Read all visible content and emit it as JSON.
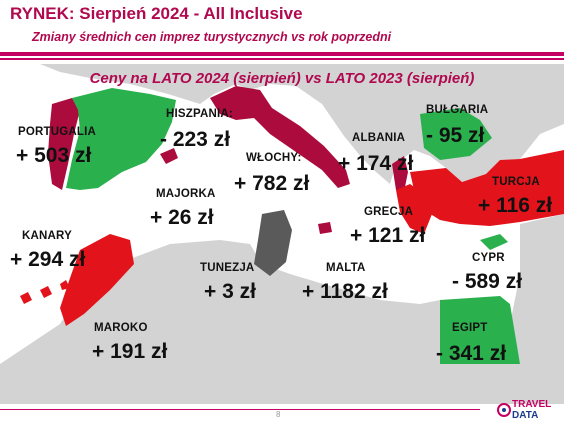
{
  "header": {
    "title": "RYNEK: Sierpień 2024 - All Inclusive",
    "subtitle": "Zmiany średnich cen imprez turystycznych vs rok poprzedni"
  },
  "chart_data": {
    "type": "table",
    "title": "Ceny na LATO 2024 (sierpień) vs  LATO 2023 (sierpień)",
    "colors": {
      "increase": "#ab0b3d",
      "decrease": "#2bb04e",
      "neutral": "#5a5a5a",
      "hot": "#e3131b"
    },
    "rows": [
      {
        "country": "PORTUGALIA",
        "value": "+ 503 zł"
      },
      {
        "country": "HISZPANIA:",
        "value": "- 223 zł"
      },
      {
        "country": "WŁOCHY:",
        "value": "+ 782 zł"
      },
      {
        "country": "ALBANIA",
        "value": "+ 174 zł"
      },
      {
        "country": "BUŁGARIA",
        "value": "- 95 zł"
      },
      {
        "country": "TURCJA",
        "value": "+ 116 zł"
      },
      {
        "country": "MAJORKA",
        "value": "+ 26 zł"
      },
      {
        "country": "GRECJA",
        "value": "+ 121 zł"
      },
      {
        "country": "KANARY",
        "value": "+ 294 zł"
      },
      {
        "country": "TUNEZJA",
        "value": "+ 3 zł"
      },
      {
        "country": "MALTA",
        "value": "+ 1182 zł"
      },
      {
        "country": "CYPR",
        "value": "- 589 zł"
      },
      {
        "country": "MAROKO",
        "value": "+ 191 zł"
      },
      {
        "country": "EGIPT",
        "value": "- 341 zł"
      }
    ]
  },
  "footer": {
    "page_number": "8",
    "logo_line1": "TRAVEL",
    "logo_line2": "DATA"
  }
}
